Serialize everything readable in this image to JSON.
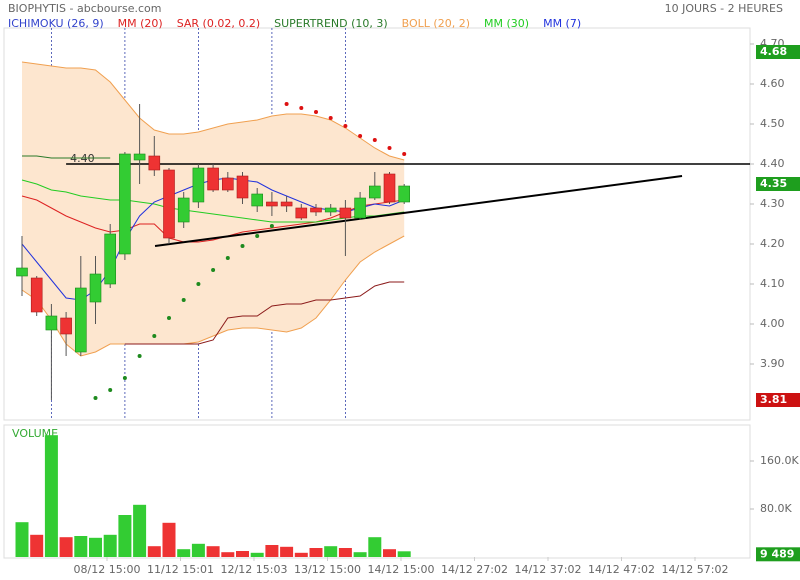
{
  "chart_data": {
    "type": "candlestick",
    "title": "BIOPHYTIS - abcbourse.com",
    "period": "10 JOURS - 2 HEURES",
    "ylim": [
      3.76,
      4.74
    ],
    "yticks": [
      {
        "value": 4.7,
        "label": "4.70"
      },
      {
        "value": 4.6,
        "label": "4.60"
      },
      {
        "value": 4.5,
        "label": "4.50"
      },
      {
        "value": 4.4,
        "label": "4.40"
      },
      {
        "value": 4.3,
        "label": "4.30"
      },
      {
        "value": 4.2,
        "label": "4.20"
      },
      {
        "value": 4.1,
        "label": "4.10"
      },
      {
        "value": 4.0,
        "label": "4.00"
      },
      {
        "value": 3.9,
        "label": "3.90"
      }
    ],
    "xlabels": [
      "08/12 15:00",
      "11/12 15:01",
      "12/12 15:03",
      "13/12 15:00",
      "14/12 15:00",
      "14/12 27:02",
      "14/12 37:02",
      "14/12 47:02",
      "14/12 57:02"
    ],
    "day_separators": [
      2,
      7,
      12,
      17,
      22
    ],
    "candles": {
      "up_color": "#33cc33",
      "down_color": "#ee3333",
      "open": [
        4.12,
        4.115,
        3.985,
        4.015,
        3.93,
        4.055,
        4.1,
        4.175,
        4.41,
        4.42,
        4.385,
        4.255,
        4.305,
        4.39,
        4.365,
        4.37,
        4.295,
        4.305,
        4.305,
        4.29,
        4.29,
        4.28,
        4.29,
        4.265,
        4.315,
        4.375,
        4.305
      ],
      "high": [
        4.22,
        4.12,
        4.05,
        4.03,
        4.17,
        4.17,
        4.25,
        4.43,
        4.55,
        4.47,
        4.39,
        4.33,
        4.4,
        4.4,
        4.38,
        4.38,
        4.34,
        4.33,
        4.32,
        4.3,
        4.3,
        4.3,
        4.31,
        4.33,
        4.38,
        4.38,
        4.35
      ],
      "low": [
        4.07,
        4.02,
        3.81,
        3.92,
        3.92,
        4.0,
        4.09,
        4.16,
        4.35,
        4.37,
        4.2,
        4.24,
        4.29,
        4.33,
        4.33,
        4.3,
        4.28,
        4.27,
        4.28,
        4.26,
        4.27,
        4.27,
        4.17,
        4.26,
        4.31,
        4.3,
        4.3
      ],
      "close": [
        4.14,
        4.03,
        4.02,
        3.975,
        4.09,
        4.125,
        4.225,
        4.425,
        4.425,
        4.385,
        4.215,
        4.315,
        4.39,
        4.335,
        4.335,
        4.315,
        4.325,
        4.295,
        4.295,
        4.265,
        4.28,
        4.29,
        4.265,
        4.315,
        4.345,
        4.305,
        4.345
      ]
    },
    "series": [
      {
        "name": "ICHIMOKU (26, 9)",
        "color": "#3344cc",
        "line_color": "#2a7a2a",
        "values": [
          4.42,
          4.42,
          4.415,
          4.415,
          4.415,
          4.415,
          4.415,
          null,
          null,
          null,
          null,
          null,
          null,
          null,
          null,
          null,
          null,
          null,
          null,
          null,
          null,
          null,
          null,
          null,
          null,
          null,
          null
        ]
      },
      {
        "name": "MM (20)",
        "color": "#dd2222",
        "values": [
          4.32,
          4.31,
          4.29,
          4.27,
          4.255,
          4.24,
          4.23,
          4.235,
          4.25,
          4.25,
          4.215,
          4.205,
          4.205,
          4.21,
          4.22,
          4.23,
          4.235,
          4.24,
          4.245,
          4.25,
          4.255,
          4.265,
          4.28,
          4.295,
          4.3,
          4.305,
          4.31
        ]
      },
      {
        "name": "SAR (0.02, 0.2)",
        "color": "#dd2222",
        "style": "dots",
        "above_color": "#dd1111",
        "below_color": "#1e8a1e",
        "values": [
          null,
          null,
          null,
          null,
          null,
          3.815,
          3.835,
          3.865,
          3.92,
          3.97,
          4.015,
          4.06,
          4.1,
          4.135,
          4.165,
          4.195,
          4.22,
          4.245,
          4.55,
          4.54,
          4.53,
          4.515,
          4.495,
          4.47,
          4.46,
          4.44,
          4.425
        ]
      },
      {
        "name": "SUPERTREND (10, 3)",
        "color": "#2a7a2a",
        "line_color": "#8b1a1a",
        "values": [
          null,
          null,
          null,
          null,
          null,
          null,
          null,
          3.95,
          3.95,
          3.95,
          3.95,
          3.95,
          3.95,
          3.96,
          4.015,
          4.02,
          4.02,
          4.045,
          4.05,
          4.05,
          4.06,
          4.06,
          4.065,
          4.07,
          4.095,
          4.105,
          4.105
        ]
      },
      {
        "name": "BOLL (20, 2)",
        "color": "#f0a050",
        "style": "band",
        "fill": "#fde6cf",
        "values": [
          4.655,
          4.65,
          4.645,
          4.64,
          4.64,
          4.635,
          4.605,
          4.56,
          4.515,
          4.485,
          4.475,
          4.475,
          4.48,
          4.49,
          4.5,
          4.505,
          4.51,
          4.52,
          4.525,
          4.525,
          4.52,
          4.51,
          4.49,
          4.465,
          4.44,
          4.42,
          4.41
        ],
        "lower": [
          4.085,
          4.06,
          4.01,
          3.95,
          3.92,
          3.93,
          3.95,
          3.95,
          3.95,
          3.95,
          3.95,
          3.95,
          3.955,
          3.97,
          3.985,
          3.99,
          3.99,
          3.985,
          3.98,
          3.99,
          4.015,
          4.06,
          4.11,
          4.155,
          4.18,
          4.2,
          4.22
        ]
      },
      {
        "name": "MM (30)",
        "color": "#22cc22",
        "values": [
          4.36,
          4.35,
          4.335,
          4.33,
          4.32,
          4.315,
          4.31,
          4.31,
          4.305,
          4.3,
          4.29,
          4.285,
          4.28,
          4.275,
          4.27,
          4.265,
          4.26,
          4.255,
          4.255,
          4.255,
          4.255,
          4.26,
          4.265,
          4.27,
          4.27,
          4.275,
          4.28
        ]
      },
      {
        "name": "MM (7)",
        "color": "#2233dd",
        "values": [
          4.2,
          4.155,
          4.11,
          4.065,
          4.06,
          4.085,
          4.135,
          4.21,
          4.27,
          4.305,
          4.32,
          4.335,
          4.35,
          4.36,
          4.365,
          4.36,
          4.355,
          4.335,
          4.32,
          4.305,
          4.29,
          4.285,
          4.28,
          4.29,
          4.3,
          4.295,
          4.31
        ]
      }
    ],
    "hline": {
      "value": 4.4,
      "label": "4.40",
      "from": 3
    },
    "trendline": {
      "x": [
        9.05,
        44.9
      ],
      "y": [
        4.195,
        4.37
      ]
    },
    "price_markers": [
      {
        "value": 4.68,
        "color": "#1e9e1e"
      },
      {
        "value": 4.35,
        "color": "#1e9e1e"
      },
      {
        "value": 3.81,
        "color": "#cc1111"
      }
    ],
    "volume": {
      "title": "VOLUME",
      "ylim": [
        0,
        220000
      ],
      "yticks": [
        {
          "value": 160000,
          "label": "160.0K"
        },
        {
          "value": 80000,
          "label": "80.0K"
        }
      ],
      "values": [
        58000,
        37000,
        203000,
        33000,
        35000,
        32000,
        37000,
        70000,
        87000,
        18000,
        57000,
        13000,
        22000,
        18000,
        8000,
        10000,
        7000,
        20000,
        17000,
        7000,
        15000,
        18000,
        15000,
        8000,
        33000,
        13000,
        9489
      ],
      "value_labels": [
        null,
        null,
        null,
        null,
        null,
        null,
        null,
        null,
        null,
        null,
        null,
        null,
        null,
        null,
        null,
        null,
        null,
        null,
        null,
        null,
        null,
        null,
        null,
        null,
        null,
        null,
        "9 489"
      ],
      "label_color": "#1e9e1e"
    }
  }
}
